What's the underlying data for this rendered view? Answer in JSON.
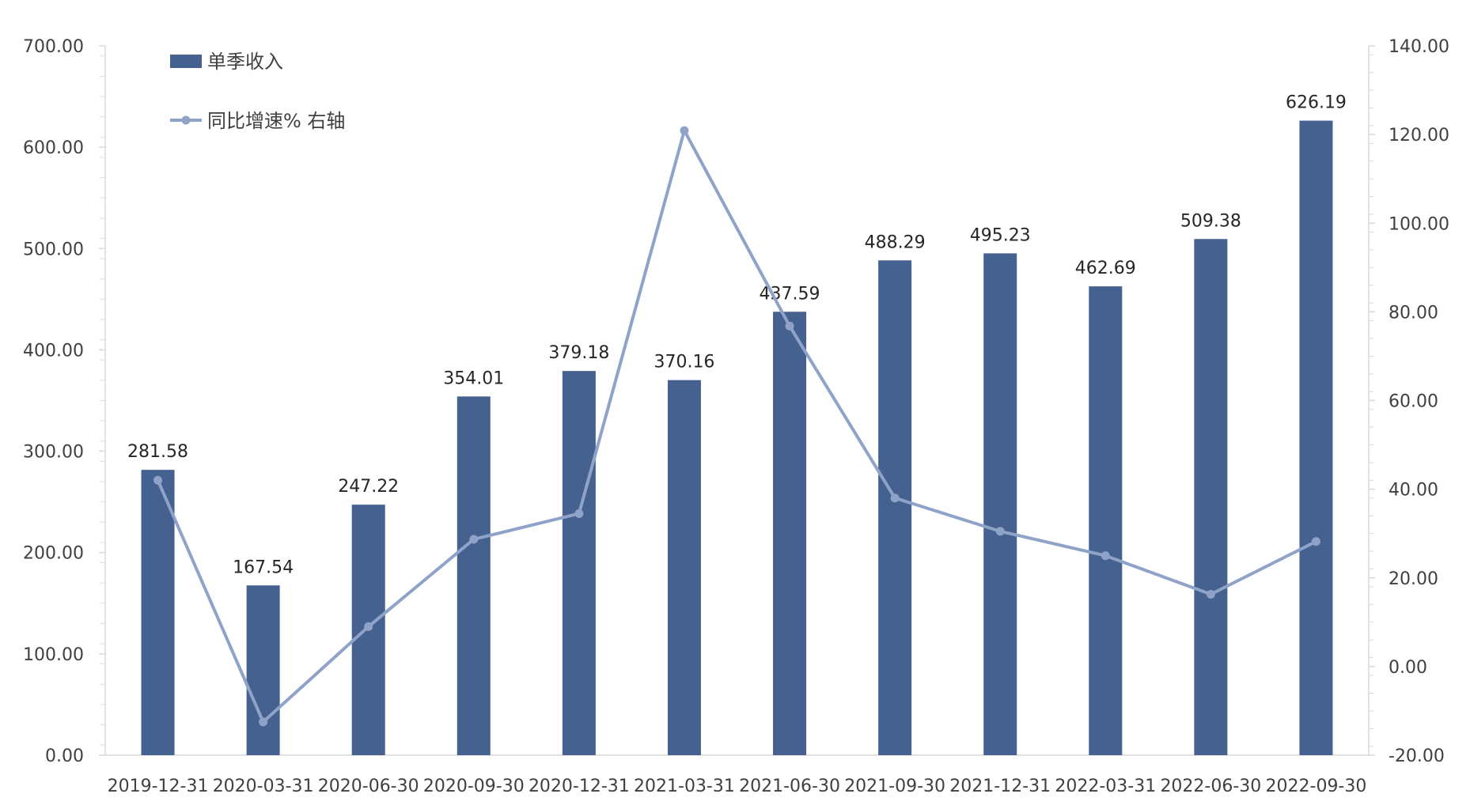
{
  "chart_data": {
    "type": "bar",
    "title": "",
    "xlabel": "",
    "ylabel": "",
    "categories": [
      "2019-12-31",
      "2020-03-31",
      "2020-06-30",
      "2020-09-30",
      "2020-12-31",
      "2021-03-31",
      "2021-06-30",
      "2021-09-30",
      "2021-12-31",
      "2022-03-31",
      "2022-06-30",
      "2022-09-30"
    ],
    "series": [
      {
        "name": "单季收入",
        "type": "bar",
        "axis": "left",
        "color": "#44618F",
        "values": [
          281.58,
          167.54,
          247.22,
          354.01,
          379.18,
          370.16,
          437.59,
          488.29,
          495.23,
          462.69,
          509.38,
          626.19
        ],
        "labels": [
          "281.58",
          "167.54",
          "247.22",
          "354.01",
          "379.18",
          "370.16",
          "437.59",
          "488.29",
          "495.23",
          "462.69",
          "509.38",
          "626.19"
        ]
      },
      {
        "name": "同比增速% 右轴",
        "type": "line",
        "axis": "right",
        "color": "#8FA3C9",
        "values": [
          42.0,
          -12.5,
          9.0,
          28.7,
          34.5,
          120.9,
          76.8,
          38.0,
          30.5,
          25.0,
          16.3,
          28.2
        ]
      }
    ],
    "y_left": {
      "min": 0,
      "max": 700,
      "ticks": [
        "0.00",
        "100.00",
        "200.00",
        "300.00",
        "400.00",
        "500.00",
        "600.00",
        "700.00"
      ]
    },
    "y_right": {
      "min": -20,
      "max": 140,
      "ticks": [
        "-20.00",
        "0.00",
        "20.00",
        "40.00",
        "60.00",
        "80.00",
        "100.00",
        "120.00",
        "140.00"
      ]
    },
    "grid": false,
    "legend": "top-left"
  }
}
